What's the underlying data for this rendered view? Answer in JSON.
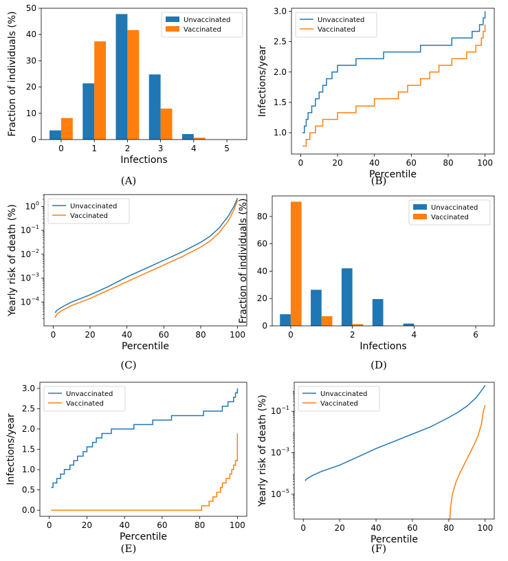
{
  "colors": {
    "unvaccinated": "#1f77b4",
    "vaccinated": "#ff7f0e"
  },
  "chart_data": [
    {
      "panel": "A",
      "caption": "(A)",
      "type": "bar",
      "xlabel": "Infections",
      "ylabel": "Fraction of individuals (%)",
      "xlim": [
        -0.6,
        5.6
      ],
      "ylim": [
        0,
        50
      ],
      "xticks": [
        0,
        1,
        2,
        3,
        4,
        5
      ],
      "yticks": [
        0,
        10,
        20,
        30,
        40,
        50
      ],
      "ytick_labels": [
        "0",
        "10",
        "20",
        "30",
        "40",
        "50"
      ],
      "categories": [
        0,
        1,
        2,
        3,
        4,
        5
      ],
      "legend_pos": "upper-right",
      "series": [
        {
          "name": "Unvaccinated",
          "values": [
            3.5,
            21.4,
            47.8,
            24.8,
            2.1,
            0
          ]
        },
        {
          "name": "Vaccinated",
          "values": [
            8.2,
            37.4,
            41.7,
            11.8,
            0.7,
            0
          ]
        }
      ]
    },
    {
      "panel": "B",
      "caption": "(B)",
      "type": "line",
      "scale": "linear",
      "xlabel": "Percentile",
      "ylabel": "Infections/year",
      "xlim": [
        -5,
        105
      ],
      "ylim": [
        0.65,
        3.05
      ],
      "xticks": [
        0,
        20,
        40,
        60,
        80,
        100
      ],
      "yticks": [
        1.0,
        1.5,
        2.0,
        2.5,
        3.0
      ],
      "ytick_labels": [
        "1.0",
        "1.5",
        "2.0",
        "2.5",
        "3.0"
      ],
      "legend_pos": "upper-left",
      "series": [
        {
          "name": "Unvaccinated",
          "x": [
            1,
            2,
            3,
            4,
            5,
            6,
            7,
            8,
            9,
            10,
            11,
            12,
            13,
            14,
            15,
            16,
            17,
            18,
            19,
            20,
            22,
            24,
            30,
            45,
            65,
            82,
            91,
            93,
            95,
            96,
            97,
            98,
            99,
            100
          ],
          "y": [
            1.0,
            1.11,
            1.22,
            1.33,
            1.33,
            1.44,
            1.44,
            1.56,
            1.56,
            1.67,
            1.67,
            1.78,
            1.78,
            1.89,
            1.89,
            1.89,
            2.0,
            2.0,
            2.0,
            2.11,
            2.11,
            2.11,
            2.22,
            2.33,
            2.44,
            2.56,
            2.56,
            2.67,
            2.67,
            2.67,
            2.78,
            2.78,
            2.89,
            3.0
          ]
        },
        {
          "name": "Vaccinated",
          "x": [
            1,
            3,
            5,
            8,
            12,
            20,
            30,
            40,
            45,
            53,
            58,
            65,
            70,
            75,
            80,
            82,
            90,
            92,
            95,
            97,
            98,
            99,
            100
          ],
          "y": [
            0.78,
            0.89,
            1.0,
            1.11,
            1.22,
            1.33,
            1.44,
            1.56,
            1.56,
            1.67,
            1.78,
            1.89,
            2.0,
            2.11,
            2.11,
            2.22,
            2.33,
            2.33,
            2.44,
            2.44,
            2.56,
            2.67,
            2.78
          ]
        }
      ]
    },
    {
      "panel": "C",
      "caption": "(C)",
      "type": "line",
      "scale": "log",
      "xlabel": "Percentile",
      "ylabel": "Yearly risk of death (%)",
      "xlim": [
        -5,
        105
      ],
      "ylim_log10": [
        -5,
        0.5
      ],
      "xticks": [
        0,
        20,
        40,
        60,
        80,
        100
      ],
      "ytick_exponents": [
        -4,
        -3,
        -2,
        -1,
        0
      ],
      "ytick_labels": [
        "10",
        "10",
        "10",
        "10",
        "10"
      ],
      "ytick_label_exponents": [
        "−4",
        "−3",
        "−2",
        "−1",
        "0"
      ],
      "legend_pos": "upper-left",
      "series": [
        {
          "name": "Unvaccinated",
          "x": [
            1,
            2,
            5,
            10,
            20,
            30,
            40,
            50,
            60,
            70,
            80,
            85,
            90,
            95,
            98,
            100
          ],
          "log10_y": [
            -4.45,
            -4.35,
            -4.2,
            -4.0,
            -3.7,
            -3.35,
            -2.95,
            -2.6,
            -2.25,
            -1.9,
            -1.5,
            -1.25,
            -0.9,
            -0.4,
            0.0,
            0.35
          ]
        },
        {
          "name": "Vaccinated",
          "x": [
            1,
            2,
            5,
            10,
            20,
            30,
            40,
            50,
            60,
            70,
            80,
            85,
            90,
            95,
            98,
            100
          ],
          "log10_y": [
            -4.65,
            -4.5,
            -4.35,
            -4.15,
            -3.85,
            -3.5,
            -3.15,
            -2.8,
            -2.45,
            -2.1,
            -1.7,
            -1.45,
            -1.1,
            -0.6,
            -0.15,
            0.25
          ]
        }
      ]
    },
    {
      "panel": "D",
      "caption": "(D)",
      "type": "bar",
      "xlabel": "Infections",
      "ylabel": "Fraction of individuals (%)",
      "xlim": [
        -0.6,
        6.6
      ],
      "ylim": [
        0,
        95
      ],
      "xticks": [
        0,
        2,
        4,
        6
      ],
      "yticks": [
        0,
        20,
        40,
        60,
        80
      ],
      "ytick_labels": [
        "0",
        "20",
        "40",
        "60",
        "80"
      ],
      "categories": [
        0,
        1,
        2,
        3,
        4,
        5,
        6
      ],
      "legend_pos": "upper-right",
      "series": [
        {
          "name": "Unvaccinated",
          "values": [
            8.5,
            26.4,
            42.1,
            19.6,
            1.7,
            0,
            0
          ]
        },
        {
          "name": "Vaccinated",
          "values": [
            90.8,
            7.1,
            1.3,
            0.2,
            0,
            0,
            0
          ]
        }
      ]
    },
    {
      "panel": "E",
      "caption": "(E)",
      "type": "line",
      "scale": "linear",
      "xlabel": "Percentile",
      "ylabel": "Infections/year",
      "xlim": [
        -5,
        105
      ],
      "ylim": [
        -0.15,
        3.15
      ],
      "xticks": [
        0,
        20,
        40,
        60,
        80,
        100
      ],
      "yticks": [
        0.0,
        0.5,
        1.0,
        1.5,
        2.0,
        2.5,
        3.0
      ],
      "ytick_labels": [
        "0.0",
        "0.5",
        "1.0",
        "1.5",
        "2.0",
        "2.5",
        "3.0"
      ],
      "legend_pos": "upper-left",
      "series": [
        {
          "name": "Unvaccinated",
          "x": [
            1,
            2,
            3,
            4,
            5,
            6,
            7,
            8,
            9,
            10,
            11,
            12,
            13,
            14,
            15,
            16,
            17,
            18,
            19,
            20,
            21,
            22,
            23,
            24,
            25,
            26,
            28,
            30,
            33,
            36,
            40,
            45,
            55,
            65,
            75,
            82,
            85,
            90,
            92,
            94,
            95,
            96,
            97,
            98,
            99,
            100
          ],
          "y": [
            0.56,
            0.67,
            0.67,
            0.78,
            0.78,
            0.89,
            0.89,
            1.0,
            1.0,
            1.0,
            1.11,
            1.11,
            1.22,
            1.22,
            1.33,
            1.33,
            1.33,
            1.44,
            1.44,
            1.56,
            1.56,
            1.56,
            1.67,
            1.67,
            1.78,
            1.78,
            1.89,
            1.89,
            2.0,
            2.0,
            2.0,
            2.11,
            2.22,
            2.33,
            2.33,
            2.44,
            2.44,
            2.44,
            2.56,
            2.56,
            2.67,
            2.67,
            2.67,
            2.78,
            2.89,
            3.0
          ]
        },
        {
          "name": "Vaccinated",
          "x": [
            1,
            20,
            40,
            60,
            80,
            81,
            83,
            85,
            86,
            87,
            88,
            89,
            90,
            91,
            92,
            93,
            94,
            95,
            96,
            97,
            98,
            99,
            100
          ],
          "y": [
            0,
            0,
            0,
            0,
            0,
            0.11,
            0.11,
            0.22,
            0.22,
            0.33,
            0.33,
            0.44,
            0.44,
            0.56,
            0.67,
            0.67,
            0.78,
            0.78,
            0.89,
            1.0,
            1.11,
            1.22,
            1.89
          ]
        }
      ]
    },
    {
      "panel": "F",
      "caption": "(F)",
      "type": "line",
      "scale": "log",
      "xlabel": "Percentile",
      "ylabel": "Yearly risk of death (%)",
      "xlim": [
        -5,
        105
      ],
      "ylim_log10": [
        -6.2,
        0.4
      ],
      "xticks": [
        0,
        20,
        40,
        60,
        80,
        100
      ],
      "ytick_exponents": [
        -5,
        -3,
        -1
      ],
      "ytick_labels": [
        "10",
        "10",
        "10"
      ],
      "ytick_label_exponents": [
        "−5",
        "−3",
        "−1"
      ],
      "legend_pos": "upper-left",
      "series": [
        {
          "name": "Unvaccinated",
          "x": [
            1,
            2,
            5,
            10,
            20,
            30,
            40,
            50,
            60,
            70,
            80,
            85,
            90,
            95,
            98,
            100
          ],
          "log10_y": [
            -4.35,
            -4.25,
            -4.1,
            -3.9,
            -3.6,
            -3.2,
            -2.8,
            -2.45,
            -2.1,
            -1.75,
            -1.3,
            -1.05,
            -0.75,
            -0.35,
            0.0,
            0.25
          ]
        },
        {
          "name": "Vaccinated",
          "x": [
            80.5,
            81,
            82,
            84,
            86,
            88,
            90,
            92,
            94,
            96,
            98,
            99,
            100
          ],
          "log10_y": [
            -6.3,
            -5.6,
            -5.0,
            -4.4,
            -4.0,
            -3.65,
            -3.3,
            -2.95,
            -2.6,
            -2.2,
            -1.6,
            -1.0,
            -0.7
          ]
        }
      ]
    }
  ]
}
